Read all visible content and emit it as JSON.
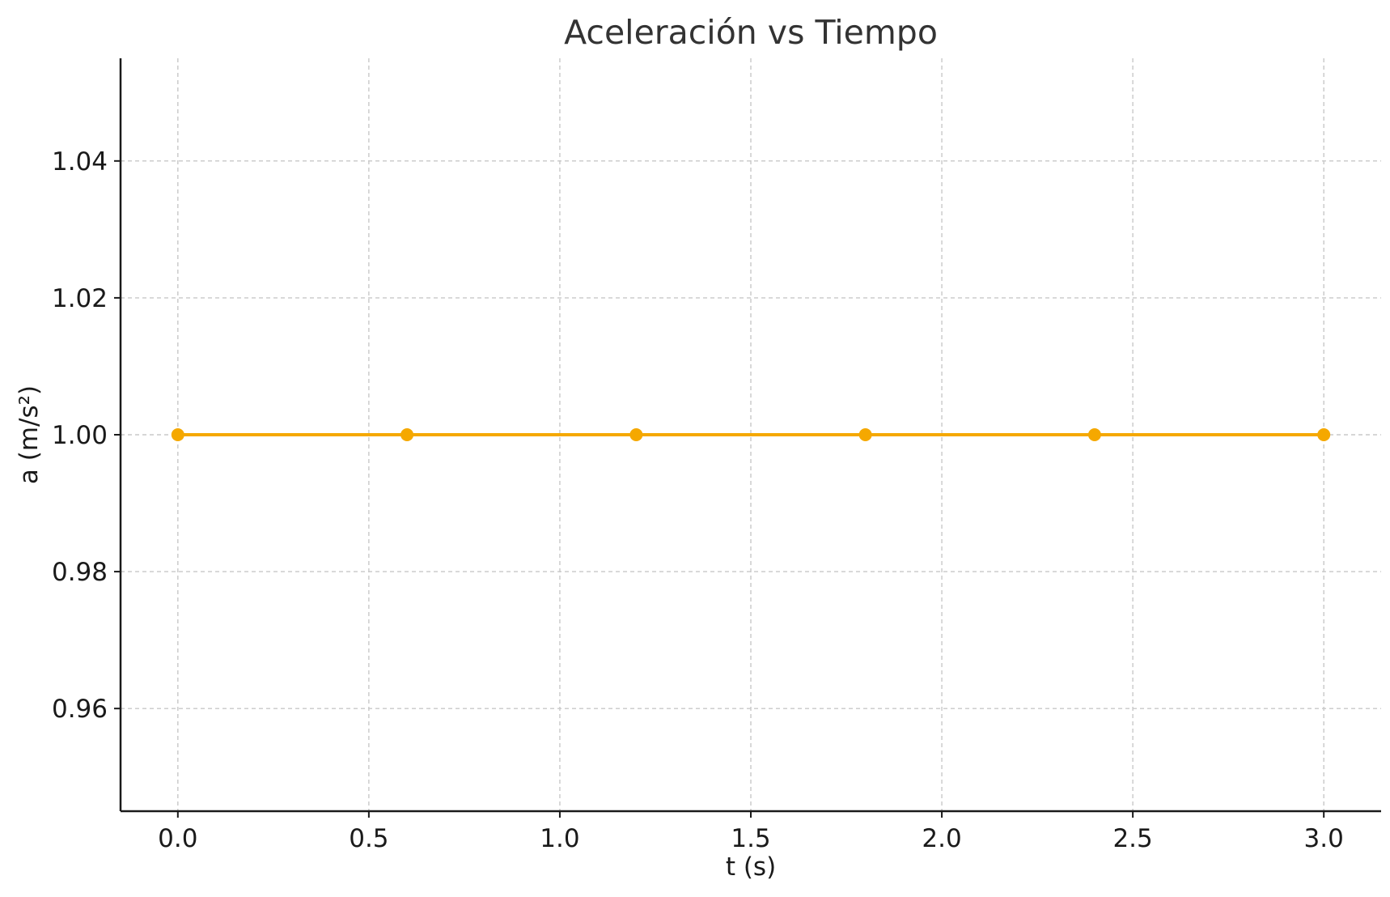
{
  "chart_data": {
    "type": "line",
    "title": "Aceleración vs Tiempo",
    "xlabel": "t (s)",
    "ylabel": "a (m/s²)",
    "xlim": [
      -0.15,
      3.15
    ],
    "ylim": [
      0.945,
      1.055
    ],
    "x_ticks": [
      0.0,
      0.5,
      1.0,
      1.5,
      2.0,
      2.5,
      3.0
    ],
    "x_tick_labels": [
      "0.0",
      "0.5",
      "1.0",
      "1.5",
      "2.0",
      "2.5",
      "3.0"
    ],
    "y_ticks": [
      0.96,
      0.98,
      1.0,
      1.02,
      1.04
    ],
    "y_tick_labels": [
      "0.96",
      "0.98",
      "1.00",
      "1.02",
      "1.04"
    ],
    "grid": true,
    "series": [
      {
        "color": "#F5A800",
        "marker": "circle",
        "x": [
          0.0,
          0.6,
          1.2,
          1.8,
          2.4,
          3.0
        ],
        "y": [
          1.0,
          1.0,
          1.0,
          1.0,
          1.0,
          1.0
        ]
      }
    ]
  }
}
